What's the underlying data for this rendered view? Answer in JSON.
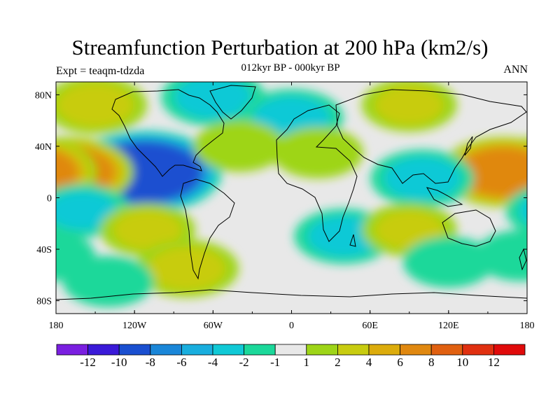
{
  "title": "Streamfunction Perturbation at 200 hPa (km2/s)",
  "subtitle": "012kyr BP - 000kyr BP",
  "experiment_label": "Expt = teaqm-tdzda",
  "season_label": "ANN",
  "lat_ticks": [
    "80N",
    "40N",
    "0",
    "40S",
    "80S"
  ],
  "lon_ticks": [
    "180",
    "120W",
    "60W",
    "0",
    "60E",
    "120E",
    "180"
  ],
  "colorbar": {
    "labels": [
      "-12",
      "-10",
      "-8",
      "-6",
      "-4",
      "-2",
      "-1",
      "1",
      "2",
      "4",
      "6",
      "8",
      "10",
      "12"
    ],
    "colors": [
      "#7a1fe0",
      "#3a1ad8",
      "#1a4fd0",
      "#1a86d8",
      "#19aede",
      "#10c9d6",
      "#1bd89a",
      "#e8e8e8",
      "#9ed518",
      "#c8cc10",
      "#dcac0c",
      "#e08810",
      "#e06010",
      "#e03010",
      "#e00a0a"
    ]
  },
  "chart_data": {
    "type": "contour-map",
    "title": "Streamfunction Perturbation at 200 hPa (km2/s)",
    "subtitle": "012kyr BP - 000kyr BP",
    "experiment": "teaqm-tdzda",
    "season": "ANN",
    "units": "km2/s",
    "xlim": [
      -180,
      180
    ],
    "ylim": [
      -90,
      90
    ],
    "contour_levels": [
      -12,
      -10,
      -8,
      -6,
      -4,
      -2,
      -1,
      1,
      2,
      4,
      6,
      8,
      10,
      12
    ],
    "features": [
      {
        "lon": -112,
        "lat": 20,
        "value": -9
      },
      {
        "lon": -170,
        "lat": 20,
        "value": 6
      },
      {
        "lon": 162,
        "lat": 20,
        "value": 6
      },
      {
        "lon": -150,
        "lat": 72,
        "value": 3
      },
      {
        "lon": -60,
        "lat": 78,
        "value": -3
      },
      {
        "lon": 0,
        "lat": 62,
        "value": -3
      },
      {
        "lon": 90,
        "lat": 72,
        "value": 2
      },
      {
        "lon": -40,
        "lat": 40,
        "value": 1.5
      },
      {
        "lon": 20,
        "lat": 35,
        "value": 1.5
      },
      {
        "lon": 100,
        "lat": 15,
        "value": -3
      },
      {
        "lon": -160,
        "lat": -10,
        "value": -2
      },
      {
        "lon": -110,
        "lat": -25,
        "value": 2
      },
      {
        "lon": 40,
        "lat": -30,
        "value": -2.5
      },
      {
        "lon": 90,
        "lat": -25,
        "value": 2
      },
      {
        "lon": -80,
        "lat": -55,
        "value": 3
      },
      {
        "lon": -140,
        "lat": -65,
        "value": -1.5
      },
      {
        "lon": 120,
        "lat": -50,
        "value": -1.5
      },
      {
        "lon": 175,
        "lat": -45,
        "value": -1.5
      }
    ]
  }
}
